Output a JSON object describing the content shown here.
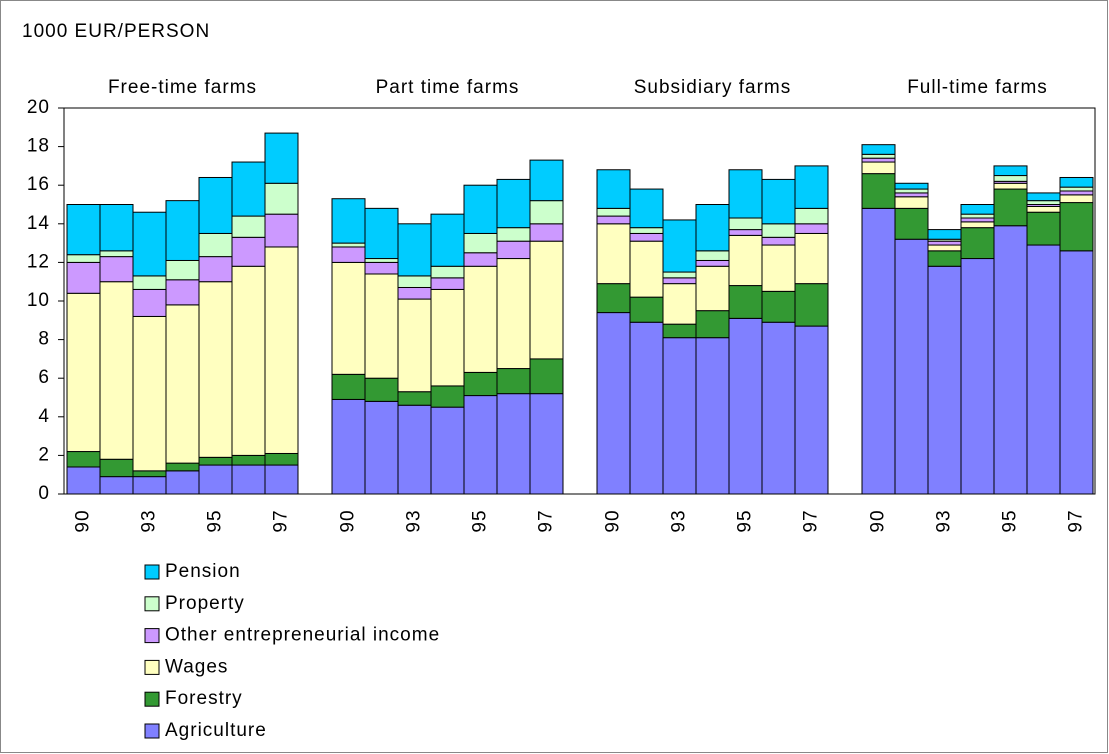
{
  "chart_data": {
    "type": "stacked-bar",
    "y_label": "1000 EUR/PERSON",
    "group_labels": [
      "Free-time farms",
      "Part time farms",
      "Subsidiary farms",
      "Full-time farms"
    ],
    "categories": [
      "90",
      null,
      "93",
      null,
      "95",
      null,
      "97",
      "90",
      null,
      "93",
      null,
      "95",
      null,
      "97",
      "90",
      null,
      "93",
      null,
      "95",
      null,
      "97",
      "90",
      null,
      "93",
      null,
      "95",
      null,
      "97"
    ],
    "ylim": [
      0,
      20
    ],
    "yticks": [
      0,
      2,
      4,
      6,
      8,
      10,
      12,
      14,
      16,
      18,
      20
    ],
    "grid": false,
    "series": [
      {
        "name": "Agriculture",
        "color": "#8080ff",
        "values": [
          1.4,
          0.9,
          0.9,
          1.2,
          1.5,
          1.5,
          1.5,
          4.9,
          4.8,
          4.6,
          4.5,
          5.1,
          5.2,
          5.2,
          9.4,
          8.9,
          8.1,
          8.1,
          9.1,
          8.9,
          8.7,
          14.8,
          13.2,
          11.8,
          12.2,
          13.9,
          12.9,
          12.6
        ]
      },
      {
        "name": "Forestry",
        "color": "#339933",
        "values": [
          0.8,
          0.9,
          0.3,
          0.4,
          0.4,
          0.5,
          0.6,
          1.3,
          1.2,
          0.7,
          1.1,
          1.2,
          1.3,
          1.8,
          1.5,
          1.3,
          0.7,
          1.4,
          1.7,
          1.6,
          2.2,
          1.8,
          1.6,
          0.8,
          1.6,
          1.9,
          1.7,
          2.5
        ]
      },
      {
        "name": "Wages",
        "color": "#ffffc0",
        "values": [
          8.2,
          9.2,
          8.0,
          8.2,
          9.1,
          9.8,
          10.7,
          5.8,
          5.4,
          4.8,
          5.0,
          5.5,
          5.7,
          6.1,
          3.1,
          2.9,
          2.1,
          2.3,
          2.6,
          2.4,
          2.6,
          0.6,
          0.6,
          0.3,
          0.3,
          0.3,
          0.3,
          0.4
        ]
      },
      {
        "name": "Other entrepreneurial income",
        "color": "#cc99ff",
        "values": [
          1.6,
          1.3,
          1.4,
          1.3,
          1.3,
          1.5,
          1.7,
          0.8,
          0.6,
          0.6,
          0.6,
          0.7,
          0.9,
          0.9,
          0.4,
          0.4,
          0.3,
          0.3,
          0.3,
          0.4,
          0.5,
          0.2,
          0.2,
          0.2,
          0.2,
          0.1,
          0.1,
          0.2
        ]
      },
      {
        "name": "Property",
        "color": "#ccffcc",
        "values": [
          0.4,
          0.3,
          0.7,
          1.0,
          1.2,
          1.1,
          1.6,
          0.2,
          0.2,
          0.6,
          0.6,
          1.0,
          0.7,
          1.2,
          0.4,
          0.3,
          0.3,
          0.5,
          0.6,
          0.7,
          0.8,
          0.2,
          0.2,
          0.1,
          0.2,
          0.3,
          0.2,
          0.2
        ]
      },
      {
        "name": "Pension",
        "color": "#00ccff",
        "values": [
          2.6,
          2.4,
          3.3,
          3.1,
          2.9,
          2.8,
          2.6,
          2.3,
          2.6,
          2.7,
          2.7,
          2.5,
          2.5,
          2.1,
          2.0,
          2.0,
          2.7,
          2.4,
          2.5,
          2.3,
          2.2,
          0.5,
          0.3,
          0.5,
          0.5,
          0.5,
          0.4,
          0.5
        ]
      }
    ]
  }
}
